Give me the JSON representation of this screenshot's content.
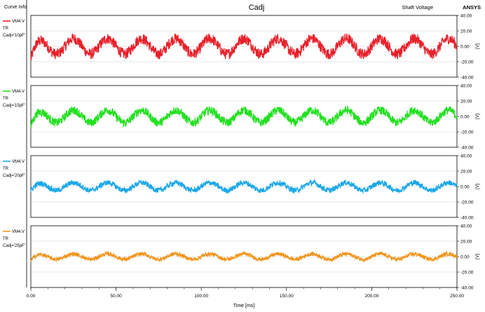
{
  "header": {
    "curve_info": "Curve Info",
    "title": "Cadj",
    "plot_name": "Shaft Voltage",
    "brand": "ANSYS"
  },
  "x_axis": {
    "label": "Time [ms]",
    "ticks": [
      "0.00",
      "50.00",
      "100.00",
      "150.00",
      "200.00",
      "250.00"
    ]
  },
  "chart_data": {
    "type": "line",
    "title": "Cadj",
    "xlabel": "Time [ms]",
    "ylabel": "[V]",
    "xlim": [
      0,
      250
    ],
    "ylim": [
      -40,
      40
    ],
    "y_ticks": [
      "40.00",
      "20.00",
      "0.00",
      "-20.00",
      "-40.00"
    ],
    "grid": true,
    "legend": "left",
    "waveform": {
      "period_ms": 20,
      "first_peak_ms": 5,
      "start_value_by_panel": [
        -17,
        -13,
        -6,
        -5
      ]
    },
    "series": [
      {
        "name": "VM4.V",
        "setup": "TR",
        "param": "Cadj='10pF'",
        "color": "#e8202a",
        "center": 0,
        "amplitude": 10,
        "noise_band": 14
      },
      {
        "name": "VM4.V",
        "setup": "TR",
        "param": "Cadj='15pF'",
        "color": "#22e01f",
        "center": 0,
        "amplitude": 8,
        "noise_band": 11
      },
      {
        "name": "VM4.V",
        "setup": "TR",
        "param": "Cadj='20pF'",
        "color": "#1aa7e8",
        "center": 0,
        "amplitude": 5,
        "noise_band": 7
      },
      {
        "name": "VM4.V",
        "setup": "TR",
        "param": "Cadj='25pF'",
        "color": "#f0951c",
        "center": 0,
        "amplitude": 3.5,
        "noise_band": 5
      }
    ]
  }
}
